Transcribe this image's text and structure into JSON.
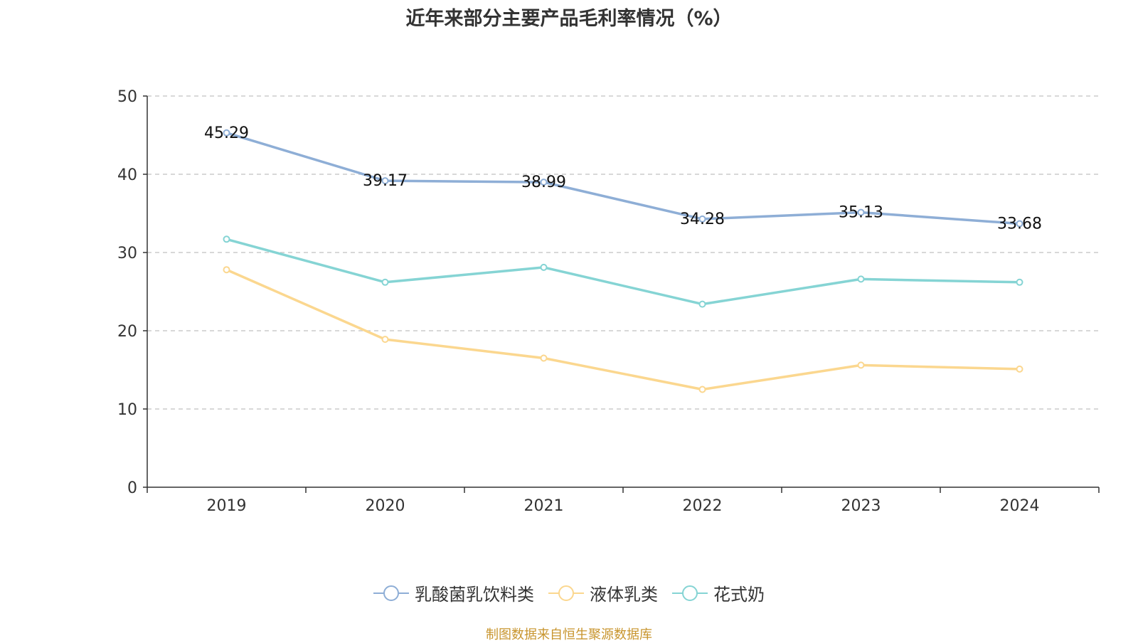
{
  "chart_data": {
    "type": "line",
    "title": "近年来部分主要产品毛利率情况（%）",
    "categories": [
      "2019",
      "2020",
      "2021",
      "2022",
      "2023",
      "2024"
    ],
    "ylim": [
      0,
      50
    ],
    "yticks": [
      0,
      10,
      20,
      30,
      40,
      50
    ],
    "grid": true,
    "legend_position": "bottom",
    "series": [
      {
        "name": "乳酸菌乳饮料类",
        "color": "#8eaed6",
        "values": [
          45.29,
          39.17,
          38.99,
          34.28,
          35.13,
          33.68
        ],
        "show_labels": true
      },
      {
        "name": "液体乳类",
        "color": "#fbd78f",
        "values": [
          27.8,
          18.9,
          16.5,
          12.5,
          15.6,
          15.1
        ],
        "show_labels": false
      },
      {
        "name": "花式奶",
        "color": "#85d4d4",
        "values": [
          31.7,
          26.2,
          28.1,
          23.4,
          26.6,
          26.2
        ],
        "show_labels": false
      }
    ]
  },
  "source": "制图数据来自恒生聚源数据库"
}
